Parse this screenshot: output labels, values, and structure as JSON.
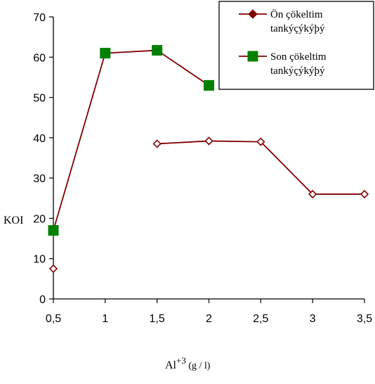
{
  "chart_data": {
    "type": "line",
    "title": "",
    "xlabel": "Al+3 (g / l)",
    "xlabel_parts": {
      "base": "Al",
      "sup": "+3",
      "rest": " (g / l)"
    },
    "ylabel": "KOI",
    "xlim": [
      0.5,
      3.5
    ],
    "ylim": [
      0,
      70
    ],
    "xticks": [
      "0,5",
      "1",
      "1,5",
      "2",
      "2,5",
      "3",
      "3,5"
    ],
    "xtick_values": [
      0.5,
      1,
      1.5,
      2,
      2.5,
      3,
      3.5
    ],
    "yticks": [
      "0",
      "10",
      "20",
      "30",
      "40",
      "50",
      "60",
      "70"
    ],
    "ytick_values": [
      0,
      10,
      20,
      30,
      40,
      50,
      60,
      70
    ],
    "grid": false,
    "legend_position": "top-right",
    "series": [
      {
        "name": "Ön çökeltim tankýçýkýþý",
        "name_lines": [
          "Ön çökeltim",
          "tankýçýkýþý"
        ],
        "color": "#800000",
        "marker": "diamond-open",
        "segments": [
          [
            [
              0.5,
              7.5
            ]
          ],
          [
            [
              1.5,
              38.5
            ],
            [
              2,
              39.2
            ],
            [
              2.5,
              39
            ],
            [
              3,
              26
            ],
            [
              3.5,
              26
            ]
          ]
        ]
      },
      {
        "name": "Son çökeltim tankýçýkýþý",
        "name_lines": [
          "Son çökeltim",
          "tankýçýkýþý"
        ],
        "color": "#008000",
        "line_color": "#800000",
        "marker": "square-filled",
        "segments": [
          [
            [
              0.5,
              17
            ],
            [
              1,
              61
            ],
            [
              1.5,
              61.7
            ],
            [
              2,
              53
            ]
          ]
        ]
      }
    ]
  }
}
